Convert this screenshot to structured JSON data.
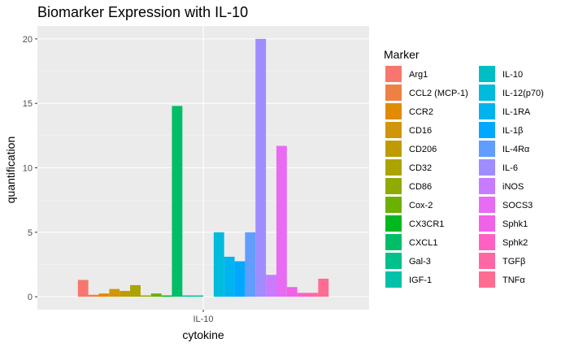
{
  "chart_data": {
    "type": "bar",
    "title": "Biomarker Expression with IL-10",
    "xlabel": "cytokine",
    "ylabel": "quantification",
    "categories": [
      "IL-10"
    ],
    "ylim": [
      -1,
      21
    ],
    "yticks": [
      0,
      5,
      10,
      15,
      20
    ],
    "grid": true,
    "legend": {
      "title": "Marker",
      "placement": "right",
      "columns": 2
    },
    "series": [
      {
        "name": "Arg1",
        "color": "#F8766D",
        "values": [
          1.3
        ]
      },
      {
        "name": "CCL2 (MCP-1)",
        "color": "#EE8043",
        "values": [
          0.15
        ]
      },
      {
        "name": "CCR2",
        "color": "#E08B00",
        "values": [
          0.25
        ]
      },
      {
        "name": "CD16",
        "color": "#D1950B",
        "values": [
          0.6
        ]
      },
      {
        "name": "CD206",
        "color": "#C09B00",
        "values": [
          0.45
        ]
      },
      {
        "name": "CD32",
        "color": "#ABA300",
        "values": [
          0.9
        ]
      },
      {
        "name": "CD86",
        "color": "#8FAA00",
        "values": [
          0.1
        ]
      },
      {
        "name": "Cox-2",
        "color": "#6BB100",
        "values": [
          0.25
        ]
      },
      {
        "name": "CX3CR1",
        "color": "#00B81F",
        "values": [
          0.1
        ]
      },
      {
        "name": "CXCL1",
        "color": "#00BE67",
        "values": [
          14.8
        ]
      },
      {
        "name": "Gal-3",
        "color": "#00C08B",
        "values": [
          0.1
        ]
      },
      {
        "name": "IGF-1",
        "color": "#00C1A9",
        "values": [
          0.1
        ]
      },
      {
        "name": "IL-10",
        "color": "#00BFC4",
        "values": [
          0.0
        ]
      },
      {
        "name": "IL-12(p70)",
        "color": "#00BBDB",
        "values": [
          5.0
        ]
      },
      {
        "name": "IL-1RA",
        "color": "#00B4F0",
        "values": [
          3.1
        ]
      },
      {
        "name": "IL-1β",
        "color": "#00A9FF",
        "values": [
          2.75
        ]
      },
      {
        "name": "IL-4Rα",
        "color": "#619CFF",
        "values": [
          5.0
        ]
      },
      {
        "name": "IL-6",
        "color": "#9F8CFF",
        "values": [
          20.0
        ]
      },
      {
        "name": "iNOS",
        "color": "#C77CFF",
        "values": [
          1.7
        ]
      },
      {
        "name": "SOCS3",
        "color": "#E76BF3",
        "values": [
          11.7
        ]
      },
      {
        "name": "Sphk1",
        "color": "#F062E8",
        "values": [
          0.75
        ]
      },
      {
        "name": "Sphk2",
        "color": "#FF61C3",
        "values": [
          0.3
        ]
      },
      {
        "name": "TGFβ",
        "color": "#FF67A4",
        "values": [
          0.3
        ]
      },
      {
        "name": "TNFα",
        "color": "#FF6C91",
        "values": [
          1.4
        ]
      }
    ]
  }
}
